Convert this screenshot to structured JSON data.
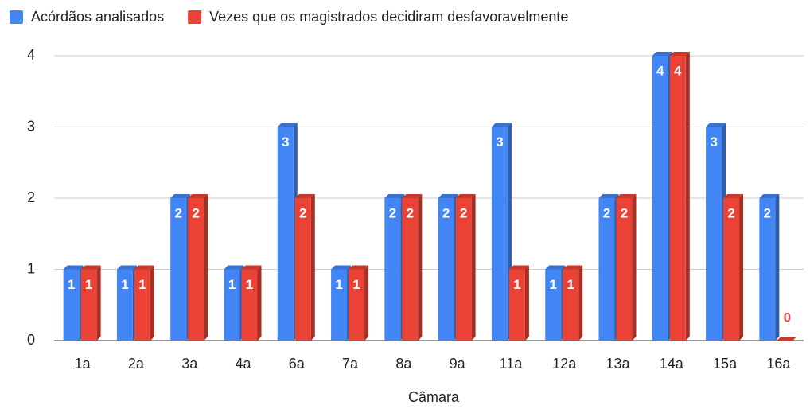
{
  "chart_data": {
    "type": "bar",
    "x_label": "Câmara",
    "categories": [
      "1a",
      "2a",
      "3a",
      "4a",
      "6a",
      "7a",
      "8a",
      "9a",
      "11a",
      "12a",
      "13a",
      "14a",
      "15a",
      "16a"
    ],
    "series": [
      {
        "name": "Acórdãos analisados",
        "color": "#4285f4",
        "values": [
          1,
          1,
          2,
          1,
          3,
          1,
          2,
          2,
          3,
          1,
          2,
          4,
          3,
          2
        ]
      },
      {
        "name": "Vezes que os magistrados decidiram desfavoravelmente",
        "color": "#ea4335",
        "values": [
          1,
          1,
          2,
          1,
          2,
          1,
          2,
          2,
          1,
          1,
          2,
          4,
          2,
          0
        ]
      }
    ],
    "ylim": [
      0,
      4
    ],
    "yticks": [
      0,
      1,
      2,
      3,
      4
    ],
    "grid": true,
    "legend": "top"
  }
}
